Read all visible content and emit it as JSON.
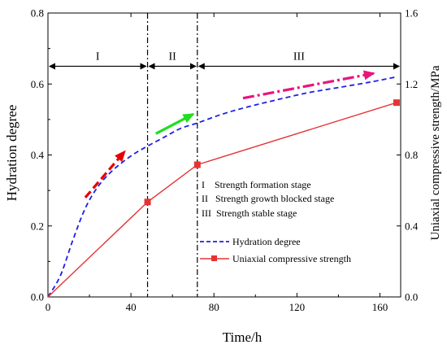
{
  "chart_data": {
    "type": "line",
    "xlabel": "Time/h",
    "ylabel_left": "Hydration degree",
    "ylabel_right": "Uniaxial compressive strength/MPa",
    "xlim": [
      0,
      170
    ],
    "ylim_left": [
      0,
      0.8
    ],
    "ylim_right": [
      0,
      1.6
    ],
    "x_ticks": [
      "0",
      "40",
      "80",
      "120",
      "160"
    ],
    "x_tick_values": [
      0,
      40,
      80,
      120,
      160
    ],
    "y_left_ticks": [
      "0.0",
      "0.2",
      "0.4",
      "0.6",
      "0.8"
    ],
    "y_left_tick_values": [
      0,
      0.2,
      0.4,
      0.6,
      0.8
    ],
    "y_right_ticks": [
      "0.0",
      "0.4",
      "0.8",
      "1.2",
      "1.6"
    ],
    "y_right_tick_values": [
      0,
      0.4,
      0.8,
      1.2,
      1.6
    ],
    "grid": false,
    "series": [
      {
        "name": "Hydration degree",
        "axis": "left",
        "color": "#1f1fe6",
        "style": "dashed",
        "x": [
          0,
          6,
          12,
          18,
          24,
          30,
          36,
          42,
          48,
          56,
          64,
          72,
          84,
          96,
          110,
          125,
          140,
          155,
          168
        ],
        "y": [
          0.0,
          0.06,
          0.16,
          0.25,
          0.31,
          0.35,
          0.38,
          0.405,
          0.425,
          0.45,
          0.475,
          0.49,
          0.515,
          0.535,
          0.555,
          0.575,
          0.59,
          0.605,
          0.62
        ]
      },
      {
        "name": "Uniaxial compressive strength",
        "axis": "right",
        "color": "#e53333",
        "style": "solid",
        "marker": "square",
        "x": [
          0,
          48,
          72,
          168
        ],
        "y": [
          0.0,
          0.535,
          0.745,
          1.095
        ]
      }
    ],
    "stage_boundaries": [
      48,
      72
    ],
    "stages": [
      {
        "label": "I",
        "x_start": 0,
        "x_end": 48
      },
      {
        "label": "II",
        "x_start": 48,
        "x_end": 72
      },
      {
        "label": "III",
        "x_start": 72,
        "x_end": 170
      }
    ],
    "stage_arrow_y": 0.65,
    "annotations": [
      {
        "text": "I    Strength formation stage"
      },
      {
        "text": "II   Strength growth blocked stage"
      },
      {
        "text": "III  Strength stable stage"
      }
    ],
    "trend_arrows": [
      {
        "color": "#e60000",
        "style": "dashed",
        "x": [
          18,
          37
        ],
        "y": [
          0.28,
          0.41
        ]
      },
      {
        "color": "#22dd22",
        "style": "solid",
        "x": [
          52,
          70
        ],
        "y": [
          0.46,
          0.515
        ]
      },
      {
        "color": "#e8157d",
        "style": "dashdot",
        "x": [
          94,
          157
        ],
        "y": [
          0.56,
          0.63
        ]
      }
    ],
    "legend_position": "center-right"
  }
}
